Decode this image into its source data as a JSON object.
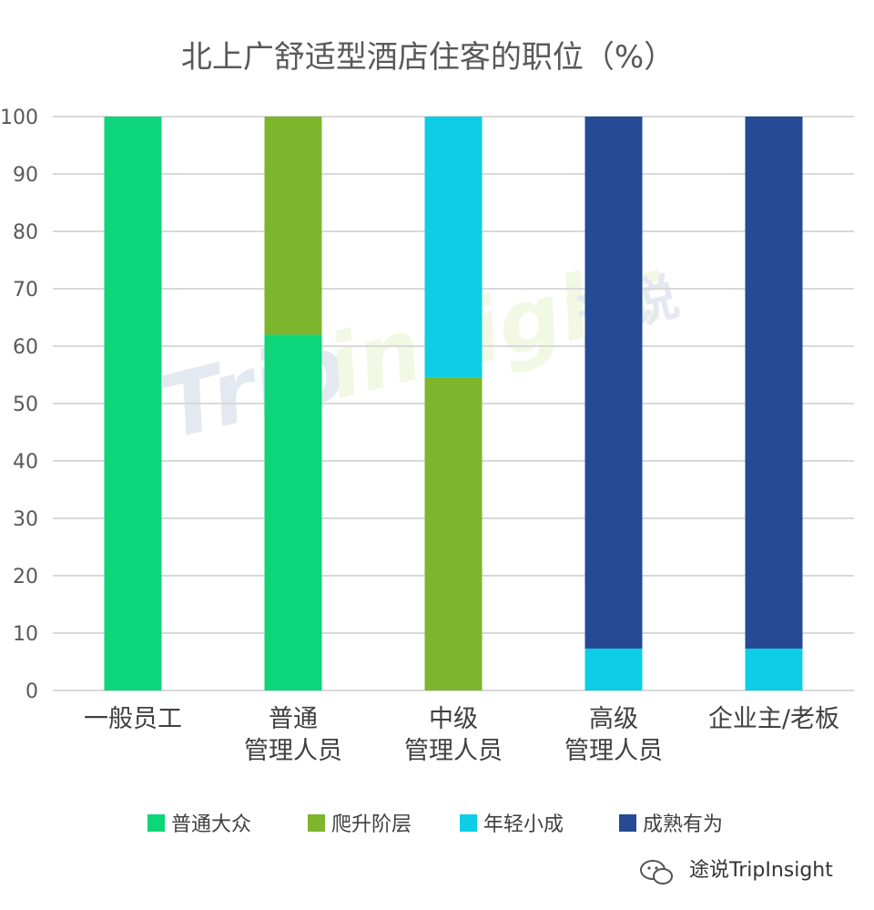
{
  "chart_data": {
    "type": "bar",
    "stacked": true,
    "title": "北上广舒适型酒店住客的职位（%）",
    "categories": [
      [
        "一般员工"
      ],
      [
        "普通",
        "管理人员"
      ],
      [
        "中级",
        "管理人员"
      ],
      [
        "高级",
        "管理人员"
      ],
      [
        "企业主/老板"
      ]
    ],
    "series": [
      {
        "name": "普通大众",
        "color": "#0dd57a",
        "values": [
          100,
          62,
          0,
          0,
          0
        ]
      },
      {
        "name": "爬升阶层",
        "color": "#7db52d",
        "values": [
          0,
          38,
          54.5,
          0,
          0
        ]
      },
      {
        "name": "年轻小成",
        "color": "#0ecde6",
        "values": [
          0,
          0,
          45.5,
          7.3,
          7.3
        ]
      },
      {
        "name": "成熟有为",
        "color": "#264a93",
        "values": [
          0,
          0,
          0,
          92.7,
          92.7
        ]
      }
    ],
    "ylim": [
      0,
      100
    ],
    "yticks": [
      0,
      10,
      20,
      30,
      40,
      50,
      60,
      70,
      80,
      90,
      100
    ],
    "grid": true,
    "legend_position": "bottom"
  },
  "watermark": {
    "logo_text": "TripInsight途说",
    "credit_text": "途说TripInsight",
    "credit_icon": "wechat-icon"
  }
}
